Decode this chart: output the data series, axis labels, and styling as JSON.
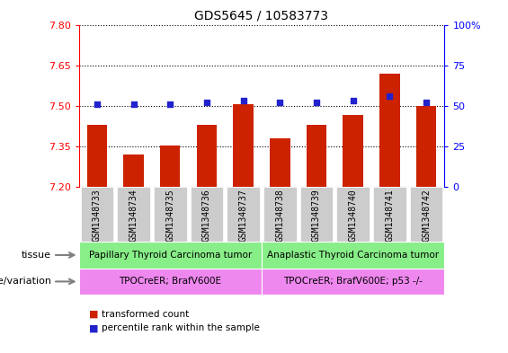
{
  "title": "GDS5645 / 10583773",
  "samples": [
    "GSM1348733",
    "GSM1348734",
    "GSM1348735",
    "GSM1348736",
    "GSM1348737",
    "GSM1348738",
    "GSM1348739",
    "GSM1348740",
    "GSM1348741",
    "GSM1348742"
  ],
  "transformed_count": [
    7.43,
    7.32,
    7.355,
    7.43,
    7.505,
    7.38,
    7.43,
    7.465,
    7.62,
    7.5
  ],
  "percentile_rank": [
    51,
    51,
    51,
    52,
    53,
    52,
    52,
    53,
    56,
    52
  ],
  "ylim_left": [
    7.2,
    7.8
  ],
  "ylim_right": [
    0,
    100
  ],
  "yticks_left": [
    7.2,
    7.35,
    7.5,
    7.65,
    7.8
  ],
  "yticks_right": [
    0,
    25,
    50,
    75,
    100
  ],
  "bar_color": "#cc2200",
  "dot_color": "#2222cc",
  "tissue_labels": [
    "Papillary Thyroid Carcinoma tumor",
    "Anaplastic Thyroid Carcinoma tumor"
  ],
  "tissue_color": "#88ee88",
  "tissue_split": 5,
  "genotype_labels": [
    "TPOCreER; BrafV600E",
    "TPOCreER; BrafV600E; p53 -/-"
  ],
  "genotype_color": "#ee88ee",
  "legend_items": [
    {
      "label": "transformed count",
      "color": "#cc2200"
    },
    {
      "label": "percentile rank within the sample",
      "color": "#2222cc"
    }
  ],
  "row_label_tissue": "tissue",
  "row_label_genotype": "genotype/variation",
  "xticklabel_bg": "#cccccc",
  "bar_width": 0.55
}
